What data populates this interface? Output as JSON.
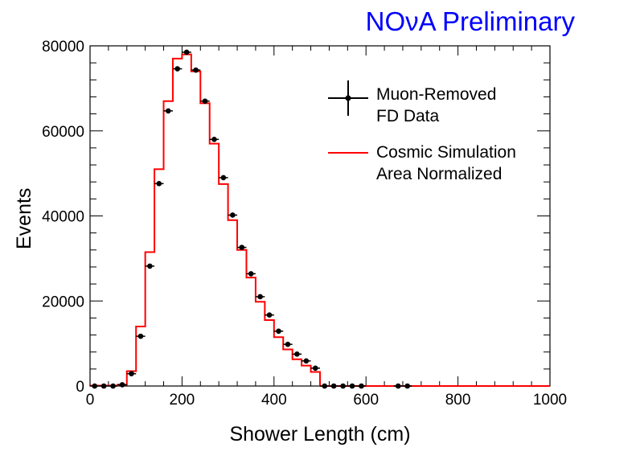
{
  "colors": {
    "banner": "#0000ff",
    "simulation": "#ff0000",
    "data": "#000000"
  },
  "banner": {
    "pre": "NO",
    "nu": "ν",
    "post": "A Preliminary"
  },
  "legend": {
    "data_line1": "Muon-Removed",
    "data_line2": "FD Data",
    "sim_line1": "Cosmic Simulation",
    "sim_line2": "Area Normalized"
  },
  "chart_data": {
    "type": "histogram",
    "xlabel": "Shower Length (cm)",
    "ylabel": "Events",
    "xlim": [
      0,
      1000
    ],
    "ylim": [
      0,
      80000
    ],
    "x_ticks": [
      "0",
      "200",
      "400",
      "600",
      "800",
      "1000"
    ],
    "y_ticks": [
      "0",
      "20000",
      "40000",
      "60000",
      "80000"
    ],
    "bin_width": 20,
    "series": [
      {
        "name": "Cosmic Simulation, Area Normalized",
        "style": "step",
        "bin_edges": [
          0,
          20,
          40,
          60,
          80,
          100,
          120,
          140,
          160,
          180,
          200,
          220,
          240,
          260,
          280,
          300,
          320,
          340,
          360,
          380,
          400,
          420,
          440,
          460,
          480,
          500,
          520,
          540,
          560,
          580,
          600,
          620,
          640,
          660,
          680,
          700,
          720,
          740,
          760,
          780,
          800,
          820,
          840,
          860,
          880,
          900,
          920,
          940,
          960,
          980,
          1000
        ],
        "values": [
          100,
          100,
          100,
          300,
          3500,
          14000,
          31500,
          51000,
          67000,
          77000,
          78000,
          74000,
          66500,
          57000,
          47500,
          39000,
          32000,
          25500,
          19800,
          15500,
          11500,
          8600,
          6300,
          4800,
          3300,
          0,
          0,
          0,
          0,
          0,
          0,
          0,
          0,
          0,
          0,
          0,
          0,
          0,
          0,
          0,
          0,
          0,
          0,
          0,
          0,
          0,
          0,
          0,
          0,
          0
        ]
      },
      {
        "name": "Muon-Removed FD Data",
        "style": "points",
        "x": [
          10,
          30,
          50,
          70,
          90,
          110,
          130,
          150,
          170,
          190,
          210,
          230,
          250,
          270,
          290,
          310,
          330,
          350,
          370,
          390,
          410,
          430,
          450,
          470,
          490,
          510,
          530,
          550,
          570,
          590,
          670,
          690
        ],
        "y": [
          0,
          0,
          0,
          300,
          2900,
          11700,
          28200,
          47600,
          64700,
          74600,
          78500,
          74300,
          67000,
          58000,
          49000,
          40200,
          32600,
          26400,
          21000,
          16700,
          12900,
          9800,
          7500,
          5900,
          4200,
          0,
          0,
          0,
          0,
          0,
          0,
          0
        ]
      }
    ]
  }
}
